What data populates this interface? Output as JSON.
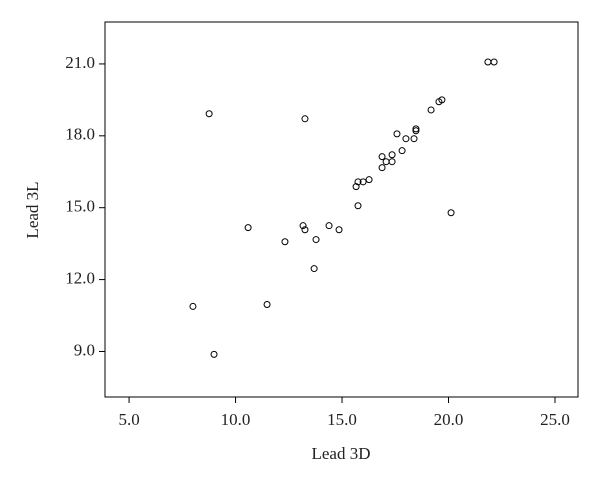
{
  "chart_data": {
    "type": "scatter",
    "x_label": "Lead 3D",
    "y_label": "Lead 3L",
    "color": "#000000",
    "xlim": [
      3.87,
      26.08
    ],
    "ylim": [
      7.1,
      22.75
    ],
    "xticks": [
      {
        "value": 5,
        "label": "5.0"
      },
      {
        "value": 10,
        "label": "10.0"
      },
      {
        "value": 15,
        "label": "15.0"
      },
      {
        "value": 20,
        "label": "20.0"
      },
      {
        "value": 25,
        "label": "25.0"
      }
    ],
    "yticks": [
      {
        "value": 9,
        "label": "9.0"
      },
      {
        "value": 12,
        "label": "12.0"
      },
      {
        "value": 15,
        "label": "15.0"
      },
      {
        "value": 18,
        "label": "18.0"
      },
      {
        "value": 21,
        "label": "21.0"
      }
    ],
    "x": [
      8.76,
      13.26,
      21.85,
      22.14,
      19.18,
      19.55,
      19.69,
      17.58,
      18.0,
      18.38,
      18.47,
      18.47,
      17.82,
      16.88,
      17.35,
      17.07,
      17.35,
      16.88,
      16.27,
      15.75,
      15.99,
      15.66,
      15.75,
      20.12,
      10.59,
      13.17,
      13.26,
      14.39,
      14.86,
      12.32,
      13.78,
      13.69,
      8.0,
      11.48,
      8.99
    ],
    "y": [
      18.92,
      18.71,
      21.08,
      21.08,
      19.08,
      19.42,
      19.5,
      18.08,
      17.88,
      17.88,
      18.21,
      18.29,
      17.38,
      17.13,
      17.21,
      16.92,
      16.92,
      16.67,
      16.17,
      16.08,
      16.08,
      15.88,
      15.08,
      14.79,
      14.17,
      14.25,
      14.08,
      14.25,
      14.08,
      13.58,
      13.67,
      12.46,
      10.88,
      10.96,
      8.88
    ]
  }
}
